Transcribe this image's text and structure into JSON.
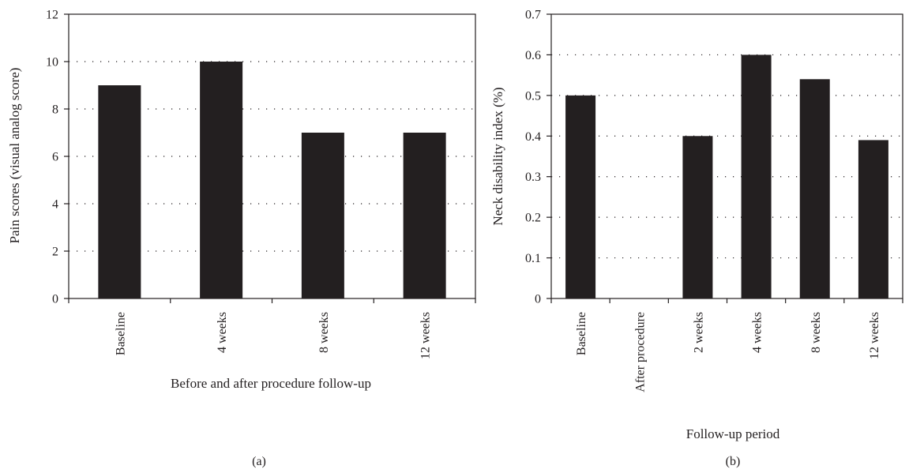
{
  "chart_data": [
    {
      "type": "bar",
      "panel_label": "(a)",
      "categories": [
        "Baseline",
        "4 weeks",
        "8 weeks",
        "12 weeks"
      ],
      "values": [
        9,
        10,
        7,
        7
      ],
      "xlabel": "Before and after procedure follow-up",
      "ylabel": "Pain scores (visual analog score)",
      "ylim": [
        0,
        12
      ],
      "yticks": [
        0,
        2,
        4,
        6,
        8,
        10,
        12
      ],
      "ytick_labels": [
        "0",
        "2",
        "4",
        "6",
        "8",
        "10",
        "12"
      ],
      "grid": "horizontal dotted",
      "bar_color": "#231f20"
    },
    {
      "type": "bar",
      "panel_label": "(b)",
      "categories": [
        "Baseline",
        "After procedure",
        "2 weeks",
        "4 weeks",
        "8 weeks",
        "12 weeks"
      ],
      "values": [
        0.5,
        0,
        0.4,
        0.6,
        0.54,
        0.39
      ],
      "xlabel": "Follow-up period",
      "ylabel": "Neck disability index (%)",
      "ylim": [
        0,
        0.7
      ],
      "yticks": [
        0,
        0.1,
        0.2,
        0.3,
        0.4,
        0.5,
        0.6,
        0.7
      ],
      "ytick_labels": [
        "0",
        "0.1",
        "0.2",
        "0.3",
        "0.4",
        "0.5",
        "0.6",
        "0.7"
      ],
      "grid": "horizontal dotted",
      "bar_color": "#231f20"
    }
  ]
}
